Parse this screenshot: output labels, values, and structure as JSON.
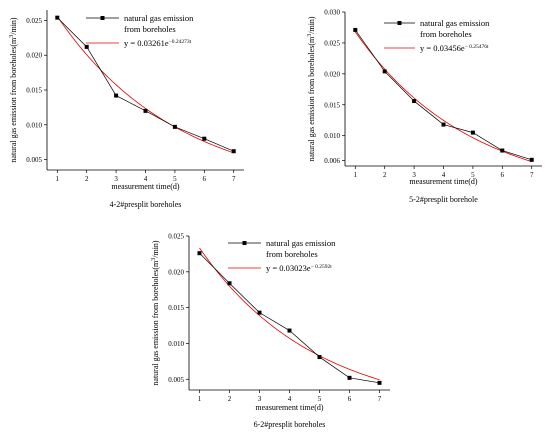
{
  "colors": {
    "data_line": "#000000",
    "fit_line": "#e60000",
    "axis": "#000000"
  },
  "chart_data": [
    {
      "type": "line",
      "caption": "4-2#presplit boreholes",
      "xlabel": "measurement time(d)",
      "ylabel_main": "natural gas emission from boreholes(m",
      "ylabel_sup": "3",
      "ylabel_end": "/min)",
      "xlim": [
        0.65,
        7.35
      ],
      "ylim": [
        0.0035,
        0.0265
      ],
      "x_ticks": [
        1,
        2,
        3,
        4,
        5,
        6,
        7
      ],
      "x_tick_labels": [
        "1",
        "2",
        "3",
        "4",
        "5",
        "6",
        "7"
      ],
      "y_ticks": [
        0.005,
        0.01,
        0.015,
        0.02,
        0.025
      ],
      "y_tick_labels": [
        "0.005",
        "0.010",
        "0.015",
        "0.020",
        "0.025"
      ],
      "x": [
        1,
        2,
        3,
        4,
        5,
        6,
        7
      ],
      "series": [
        {
          "name": "natural gas emission from boreholes",
          "kind": "measured",
          "values": [
            0.0254,
            0.0212,
            0.0142,
            0.012,
            0.0097,
            0.008,
            0.0062
          ]
        },
        {
          "name": "y = 0.03261e^(-0.24273t)",
          "kind": "fit",
          "a": 0.03261,
          "b": -0.24273
        }
      ],
      "legend": {
        "placement": "top-right",
        "line1": "natural gas emission",
        "line2": "from boreholes",
        "fit_text": "y = 0.03261e",
        "fit_exp": "−0.24273t"
      }
    },
    {
      "type": "line",
      "caption": "5-2#presplit borehole",
      "xlabel": "measurement time(d)",
      "ylabel_main": "natural gas emission from boreholes(m",
      "ylabel_sup": "3",
      "ylabel_end": "/min)",
      "xlim": [
        0.65,
        7.35
      ],
      "ylim": [
        0.0051,
        0.03
      ],
      "x_ticks": [
        1,
        2,
        3,
        4,
        5,
        6,
        7
      ],
      "x_tick_labels": [
        "1",
        "2",
        "3",
        "4",
        "5",
        "6",
        "7"
      ],
      "y_ticks": [
        0.01,
        0.015,
        0.02,
        0.025,
        0.03
      ],
      "y_tick_labels": [
        "0.010",
        "0.015",
        "0.020",
        "0.025",
        "0.030"
      ],
      "y_ticks_extra": [
        0.006
      ],
      "y_tick_labels_extra": [
        "0.006"
      ],
      "x": [
        1,
        2,
        3,
        4,
        5,
        6,
        7
      ],
      "series": [
        {
          "name": "natural gas emission from boreholes",
          "kind": "measured",
          "values": [
            0.0271,
            0.0204,
            0.0156,
            0.0118,
            0.0105,
            0.0076,
            0.0061
          ]
        },
        {
          "name": "y = 0.03456e^(-0.25476t)",
          "kind": "fit",
          "a": 0.03456,
          "b": -0.25476
        }
      ],
      "legend": {
        "placement": "top-right",
        "line1": "natural gas emission",
        "line2": "from boreholes",
        "fit_text": "y = 0.03456e",
        "fit_exp": "− 0.25476t"
      }
    },
    {
      "type": "line",
      "caption": "6-2#presplit boreholes",
      "xlabel": "measurement time(d)",
      "ylabel_main": "natural gas emission from boreholes(m",
      "ylabel_sup": "3",
      "ylabel_end": "/min)",
      "xlim": [
        0.65,
        7.35
      ],
      "ylim": [
        0.0035,
        0.025
      ],
      "x_ticks": [
        1,
        2,
        3,
        4,
        5,
        6,
        7
      ],
      "x_tick_labels": [
        "1",
        "2",
        "3",
        "4",
        "5",
        "6",
        "7"
      ],
      "y_ticks": [
        0.005,
        0.01,
        0.015,
        0.02,
        0.025
      ],
      "y_tick_labels": [
        "0.005",
        "0.010",
        "0.015",
        "0.020",
        "0.025"
      ],
      "x": [
        1,
        2,
        3,
        4,
        5,
        6,
        7
      ],
      "series": [
        {
          "name": "natural gas emission from boreholes",
          "kind": "measured",
          "values": [
            0.0226,
            0.0184,
            0.0143,
            0.0118,
            0.0081,
            0.0052,
            0.0045
          ]
        },
        {
          "name": "y = 0.03023e^(-0.2592t)",
          "kind": "fit",
          "a": 0.03023,
          "b": -0.2592
        }
      ],
      "legend": {
        "placement": "top-right",
        "line1": "natural gas emission",
        "line2": "from boreholes",
        "fit_text": "y = 0.03023e",
        "fit_exp": "− 0.2592t"
      }
    }
  ]
}
